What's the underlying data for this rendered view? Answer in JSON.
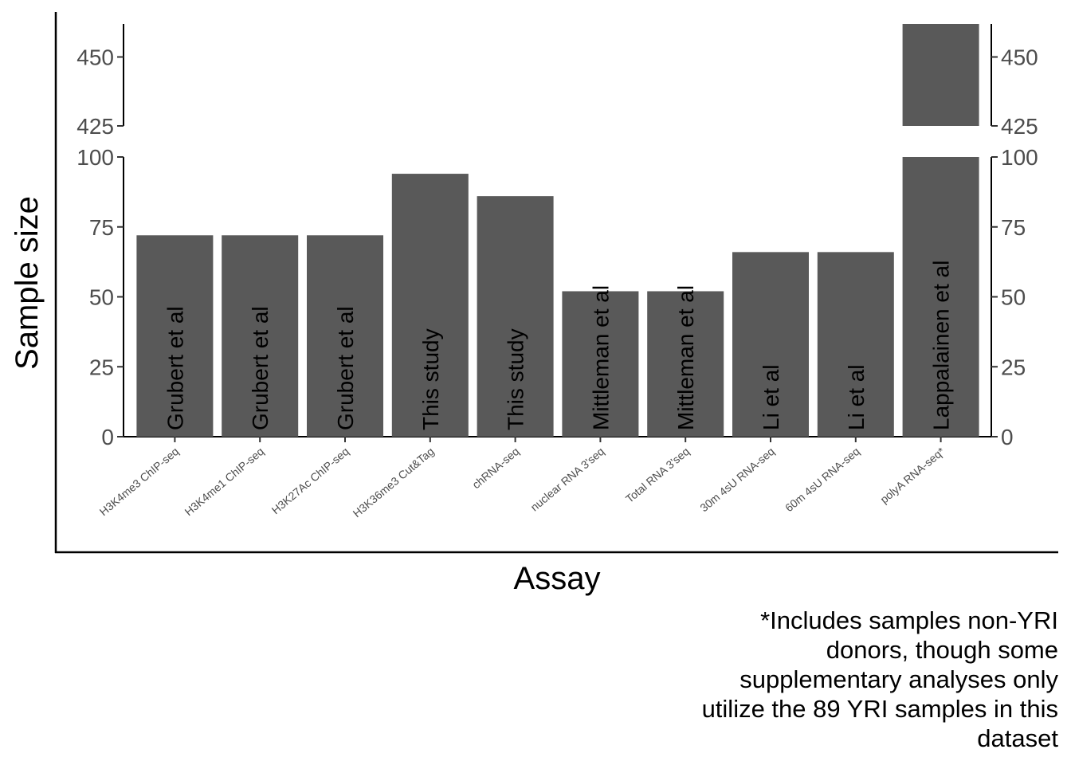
{
  "chart_data": {
    "type": "bar",
    "xlabel": "Assay",
    "ylabel": "Sample size",
    "categories": [
      "H3K4me3 ChIP-seq",
      "H3K4me1 ChIP-seq",
      "H3K27Ac ChIP-seq",
      "H3K36me3 Cut&Tag",
      "chRNA-seq",
      "nuclear RNA 3'seq",
      "Total RNA 3'seq",
      "30m 4sU RNA-seq",
      "60m 4sU RNA-seq",
      "polyA RNA-seq*"
    ],
    "values": [
      72,
      72,
      72,
      94,
      86,
      52,
      52,
      66,
      66,
      462
    ],
    "bar_labels": [
      "Grubert et al",
      "Grubert et al",
      "Grubert et al",
      "This study",
      "This study",
      "Mittleman et al",
      "Mittleman et al",
      "Li et al",
      "Li et al",
      "Lappalainen et al"
    ],
    "axis_break": {
      "lower_range": [
        0,
        100
      ],
      "upper_range": [
        425,
        462
      ]
    },
    "lower_ticks": [
      "0",
      "25",
      "50",
      "75",
      "100"
    ],
    "upper_ticks": [
      "425",
      "450"
    ],
    "bar_color": "#595959",
    "grid": false,
    "secondary_y_axis": true
  },
  "footnote": "*Includes samples non-YRI donors, though some supplementary analyses only utilize the 89 YRI samples in this dataset"
}
